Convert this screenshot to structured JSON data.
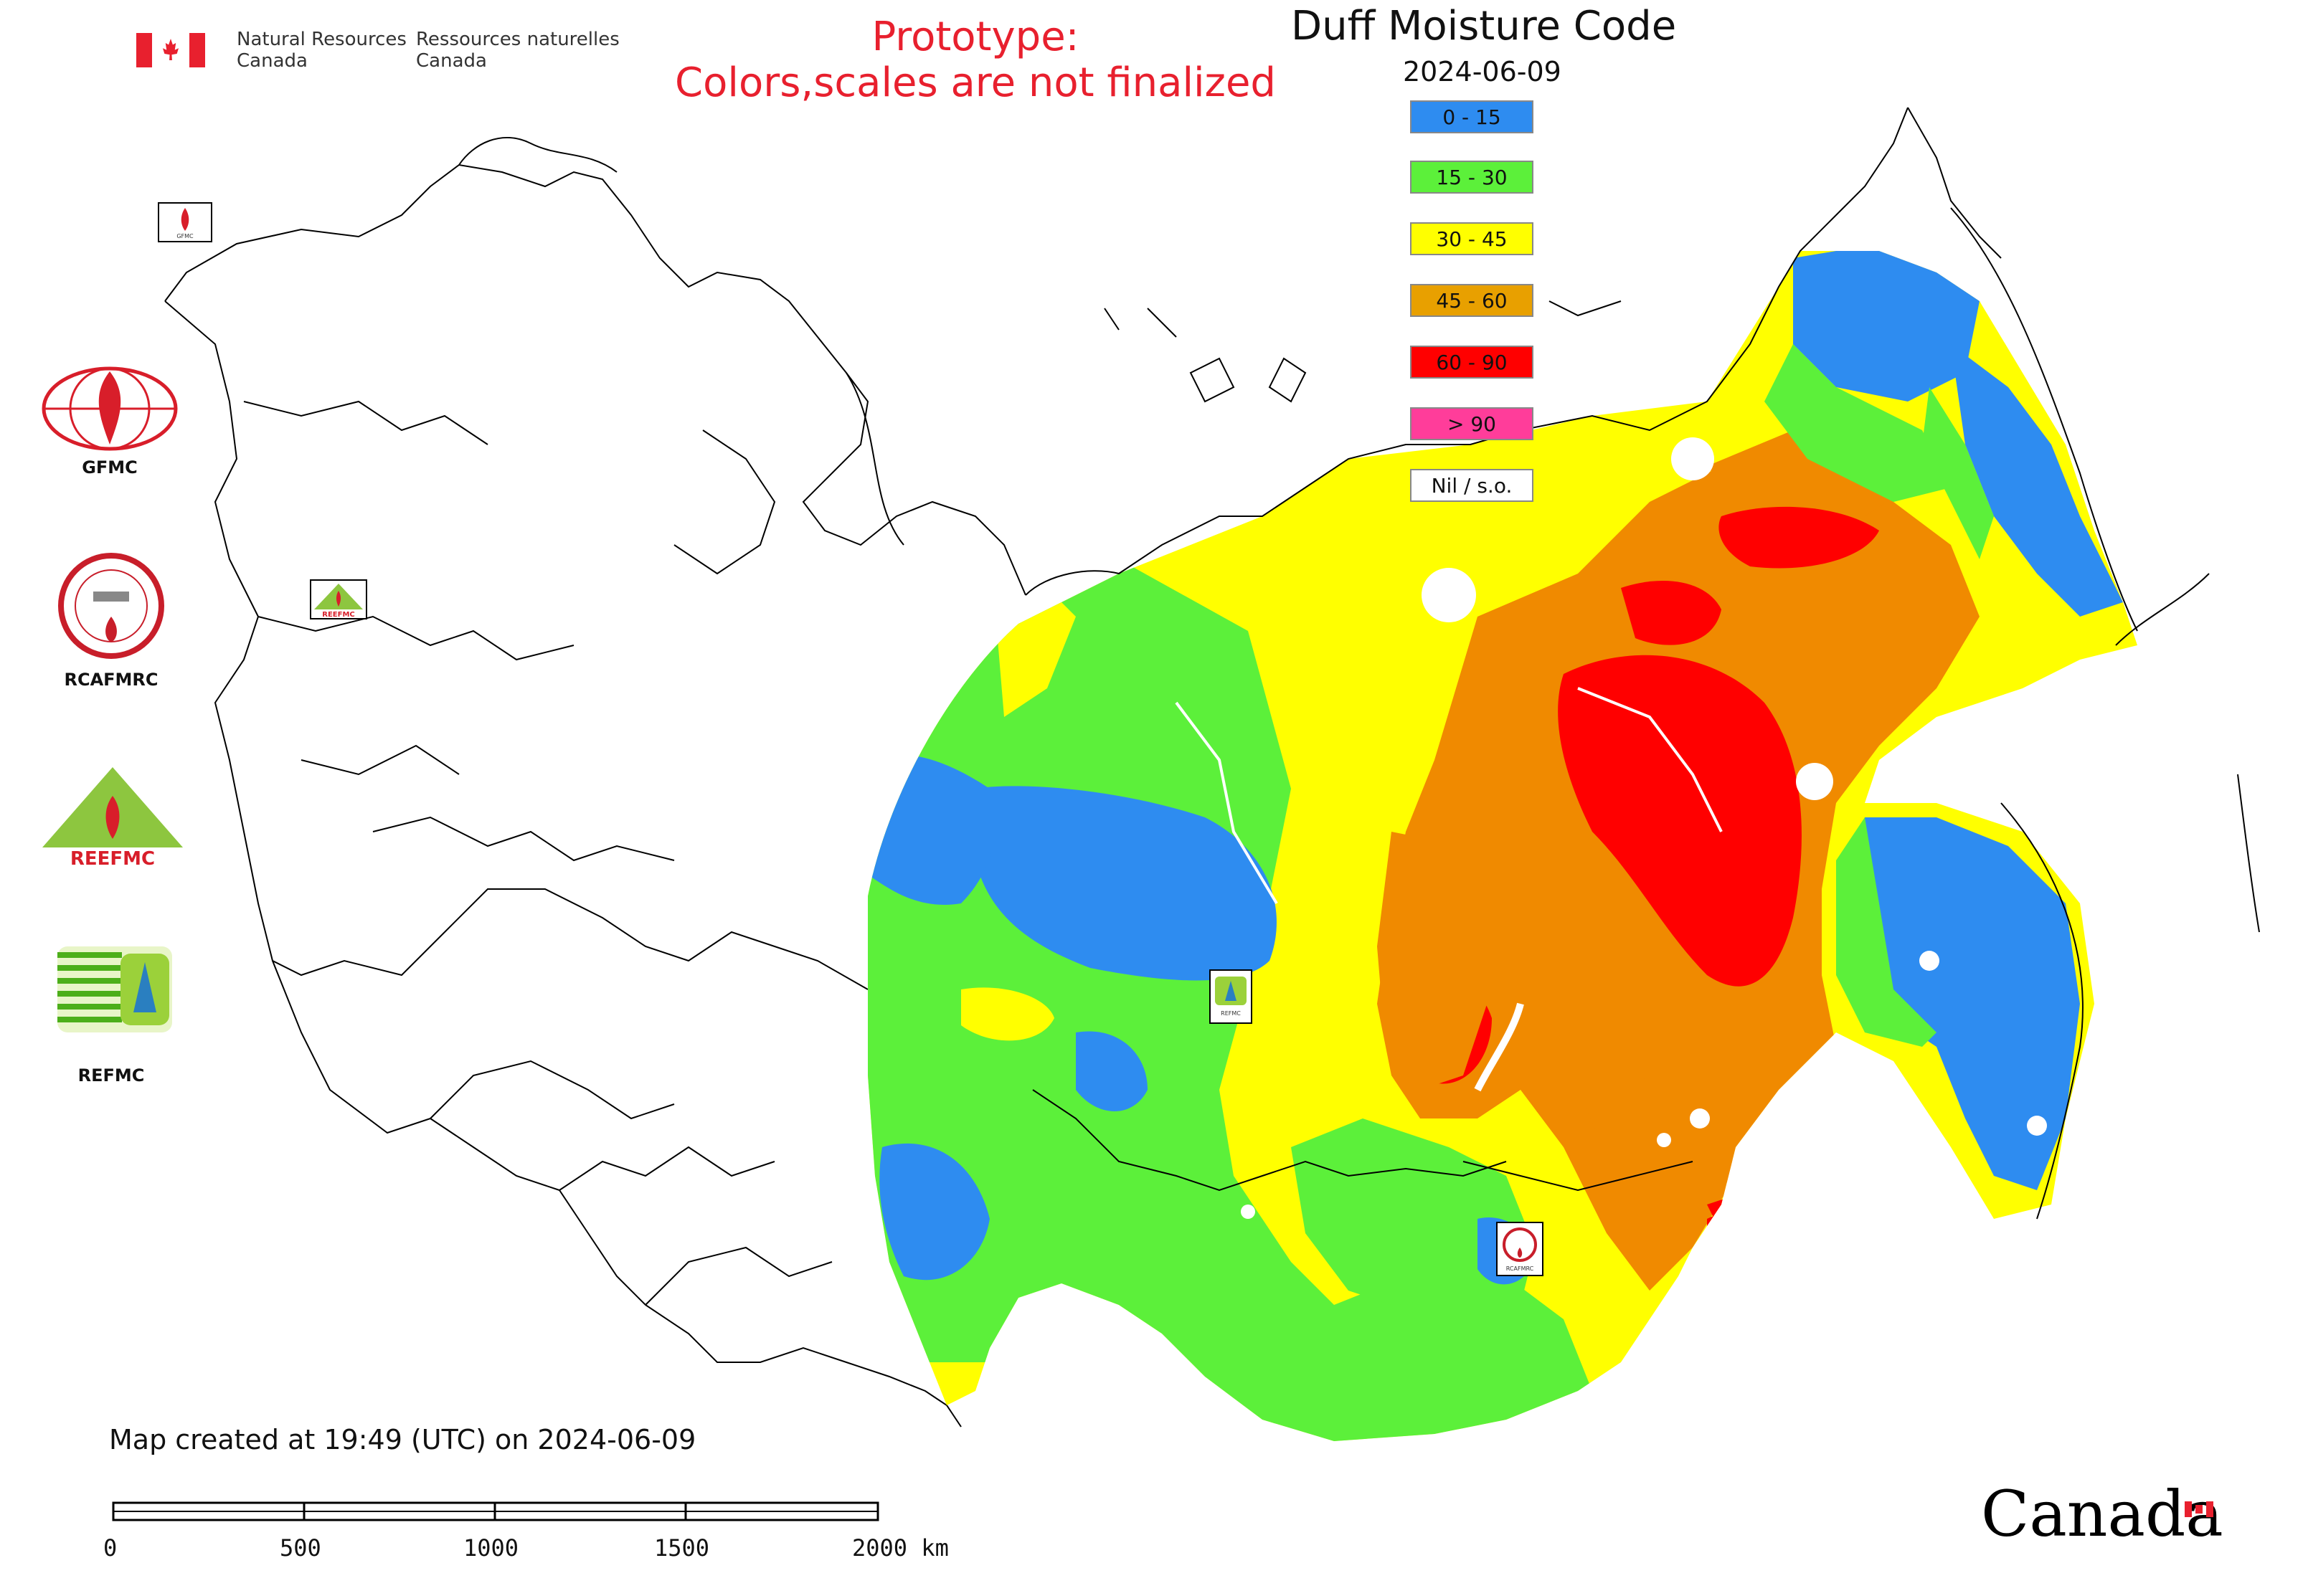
{
  "header": {
    "org_en_line1": "Natural Resources",
    "org_en_line2": "Canada",
    "org_fr_line1": "Ressources naturelles",
    "org_fr_line2": "Canada",
    "prototype_line1": "Prototype:",
    "prototype_line2": "Colors,scales are not finalized"
  },
  "map": {
    "title": "Duff Moisture Code",
    "date": "2024-06-09",
    "legend": [
      {
        "label": "0 - 15",
        "color": "#2e8cf0"
      },
      {
        "label": "15 - 30",
        "color": "#5cf03a"
      },
      {
        "label": "30 - 45",
        "color": "#ffff00"
      },
      {
        "label": "45 - 60",
        "color": "#e8a000"
      },
      {
        "label": "60 - 90",
        "color": "#ff0000"
      },
      {
        "label": "> 90",
        "color": "#ff3d9a"
      },
      {
        "label": "Nil / s.o.",
        "color": "#ffffff"
      }
    ],
    "region_markers": [
      "GFMC",
      "REEFMC",
      "REFMC",
      "RCAFMRC"
    ]
  },
  "agencies": [
    {
      "label": "GFMC",
      "icon": "gfmc-logo-icon"
    },
    {
      "label": "RCAFMRC",
      "icon": "rcafmrc-logo-icon"
    },
    {
      "label": "REEFMC",
      "icon": "reefmc-logo-icon"
    },
    {
      "label": "REFMC",
      "icon": "refmc-logo-icon"
    }
  ],
  "footer": {
    "created": "Map created at 19:49 (UTC) on 2024-06-09",
    "scale_labels": [
      "0",
      "500",
      "1000",
      "1500",
      "2000 km"
    ],
    "wordmark": "Canada"
  }
}
